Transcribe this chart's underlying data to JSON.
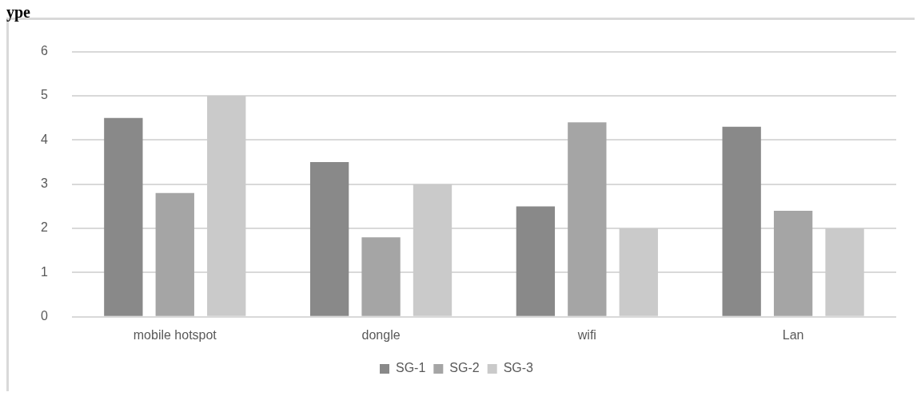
{
  "chart_data": {
    "type": "bar",
    "title": "ype",
    "categories": [
      "mobile hotspot",
      "dongle",
      "wifi",
      "Lan"
    ],
    "series": [
      {
        "name": "SG-1",
        "color": "#898989",
        "values": [
          4.5,
          3.5,
          2.5,
          4.3
        ]
      },
      {
        "name": "SG-2",
        "color": "#a5a5a5",
        "values": [
          2.8,
          1.8,
          4.4,
          2.4
        ]
      },
      {
        "name": "SG-3",
        "color": "#cacaca",
        "values": [
          5,
          3,
          2,
          2
        ]
      }
    ],
    "ylim": [
      0,
      6
    ],
    "yticks": [
      0,
      1,
      2,
      3,
      4,
      5,
      6
    ],
    "grid": "y",
    "legend": "bottom"
  }
}
